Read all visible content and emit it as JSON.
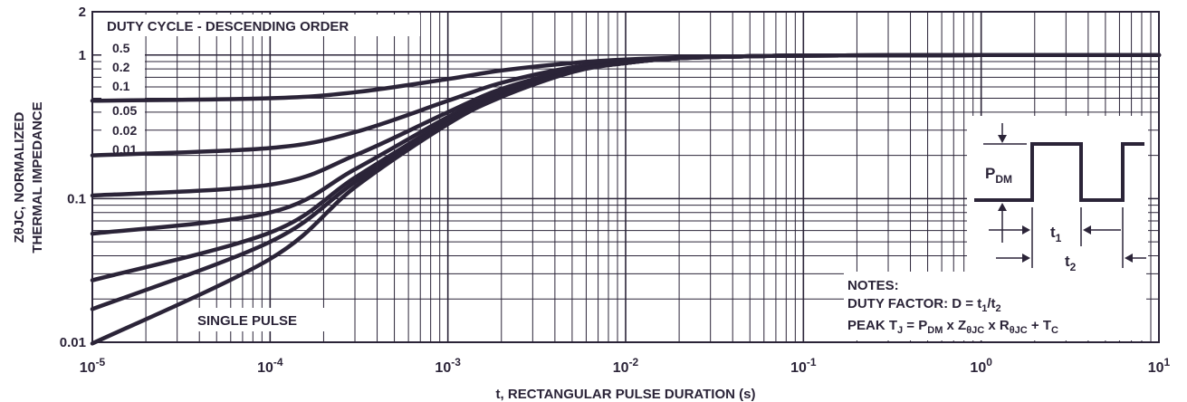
{
  "chart_data": {
    "type": "line",
    "title": "",
    "xlabel": "t, RECTANGULAR PULSE DURATION (s)",
    "ylabel_line1": "ZθJC, NORMALIZED",
    "ylabel_line2": "THERMAL IMPEDANCE",
    "x_scale": "log",
    "y_scale": "log",
    "xlim": [
      1e-05,
      10
    ],
    "ylim": [
      0.01,
      2
    ],
    "x_ticks": [
      {
        "value": 1e-05,
        "base": "10",
        "exp": "-5"
      },
      {
        "value": 0.0001,
        "base": "10",
        "exp": "-4"
      },
      {
        "value": 0.001,
        "base": "10",
        "exp": "-3"
      },
      {
        "value": 0.01,
        "base": "10",
        "exp": "-2"
      },
      {
        "value": 0.1,
        "base": "10",
        "exp": "-1"
      },
      {
        "value": 1,
        "base": "10",
        "exp": "0"
      },
      {
        "value": 10,
        "base": "10",
        "exp": "1"
      }
    ],
    "y_ticks": [
      {
        "value": 2,
        "label": "2"
      },
      {
        "value": 1,
        "label": "1"
      },
      {
        "value": 0.1,
        "label": "0.1"
      },
      {
        "value": 0.01,
        "label": "0.01"
      }
    ],
    "grid": true,
    "legend": {
      "title": "DUTY CYCLE - DESCENDING ORDER",
      "items": [
        "0.5",
        "0.2",
        "0.1",
        "0.05",
        "0.02",
        "0.01"
      ]
    },
    "series_note": "SINGLE PULSE",
    "series": [
      {
        "name": "0.5",
        "x": [
          1e-05,
          0.0001,
          0.0003,
          0.001,
          0.002,
          0.005,
          0.01,
          0.02,
          0.05,
          0.1,
          1,
          10
        ],
        "y": [
          0.48,
          0.5,
          0.55,
          0.68,
          0.78,
          0.88,
          0.93,
          0.96,
          0.98,
          0.99,
          1.0,
          1.0
        ]
      },
      {
        "name": "0.2",
        "x": [
          1e-05,
          0.0001,
          0.0003,
          0.001,
          0.002,
          0.005,
          0.01,
          0.02,
          0.05,
          0.1,
          1,
          10
        ],
        "y": [
          0.2,
          0.225,
          0.29,
          0.48,
          0.64,
          0.82,
          0.9,
          0.95,
          0.98,
          0.99,
          1.0,
          1.0
        ]
      },
      {
        "name": "0.1",
        "x": [
          1e-05,
          0.0001,
          0.0003,
          0.001,
          0.002,
          0.005,
          0.01,
          0.02,
          0.05,
          0.1,
          1,
          10
        ],
        "y": [
          0.105,
          0.125,
          0.2,
          0.4,
          0.58,
          0.79,
          0.89,
          0.95,
          0.98,
          0.99,
          1.0,
          1.0
        ]
      },
      {
        "name": "0.05",
        "x": [
          1e-05,
          0.0001,
          0.0003,
          0.001,
          0.002,
          0.005,
          0.01,
          0.02,
          0.05,
          0.1,
          1,
          10
        ],
        "y": [
          0.057,
          0.08,
          0.16,
          0.37,
          0.55,
          0.78,
          0.88,
          0.95,
          0.98,
          0.99,
          1.0,
          1.0
        ]
      },
      {
        "name": "0.02",
        "x": [
          1e-05,
          0.0001,
          0.0003,
          0.001,
          0.002,
          0.005,
          0.01,
          0.02,
          0.05,
          0.1,
          1,
          10
        ],
        "y": [
          0.027,
          0.058,
          0.14,
          0.35,
          0.53,
          0.77,
          0.88,
          0.95,
          0.98,
          0.99,
          1.0,
          1.0
        ]
      },
      {
        "name": "0.01",
        "x": [
          1e-05,
          0.0001,
          0.0003,
          0.001,
          0.002,
          0.005,
          0.01,
          0.02,
          0.05,
          0.1,
          1,
          10
        ],
        "y": [
          0.017,
          0.05,
          0.13,
          0.34,
          0.52,
          0.77,
          0.88,
          0.95,
          0.98,
          0.99,
          1.0,
          1.0
        ]
      },
      {
        "name": "SINGLE PULSE",
        "x": [
          1e-05,
          0.0001,
          0.0003,
          0.001,
          0.002,
          0.005,
          0.01,
          0.02,
          0.05,
          0.1,
          1,
          10
        ],
        "y": [
          0.0098,
          0.038,
          0.12,
          0.33,
          0.51,
          0.76,
          0.88,
          0.95,
          0.98,
          0.99,
          1.0,
          1.0
        ]
      }
    ]
  },
  "pulse_diagram": {
    "pdm_base": "P",
    "pdm_sub": "DM",
    "t1_base": "t",
    "t1_sub": "1",
    "t2_base": "t",
    "t2_sub": "2"
  },
  "notes": {
    "title": "NOTES:",
    "line1": {
      "a": "DUTY FACTOR: D = t",
      "s1": "1",
      "b": "/t",
      "s2": "2"
    },
    "line2": {
      "a": "PEAK T",
      "s1": "J",
      "b": " = P",
      "s2": "DM",
      "c": " x Z",
      "s3": "θJC",
      "d": " x R",
      "s4": "θJC",
      "e": " + T",
      "s5": "C"
    }
  },
  "colors": {
    "ink": "#2b2438",
    "grid": "#2b2438",
    "background": "#ffffff"
  }
}
